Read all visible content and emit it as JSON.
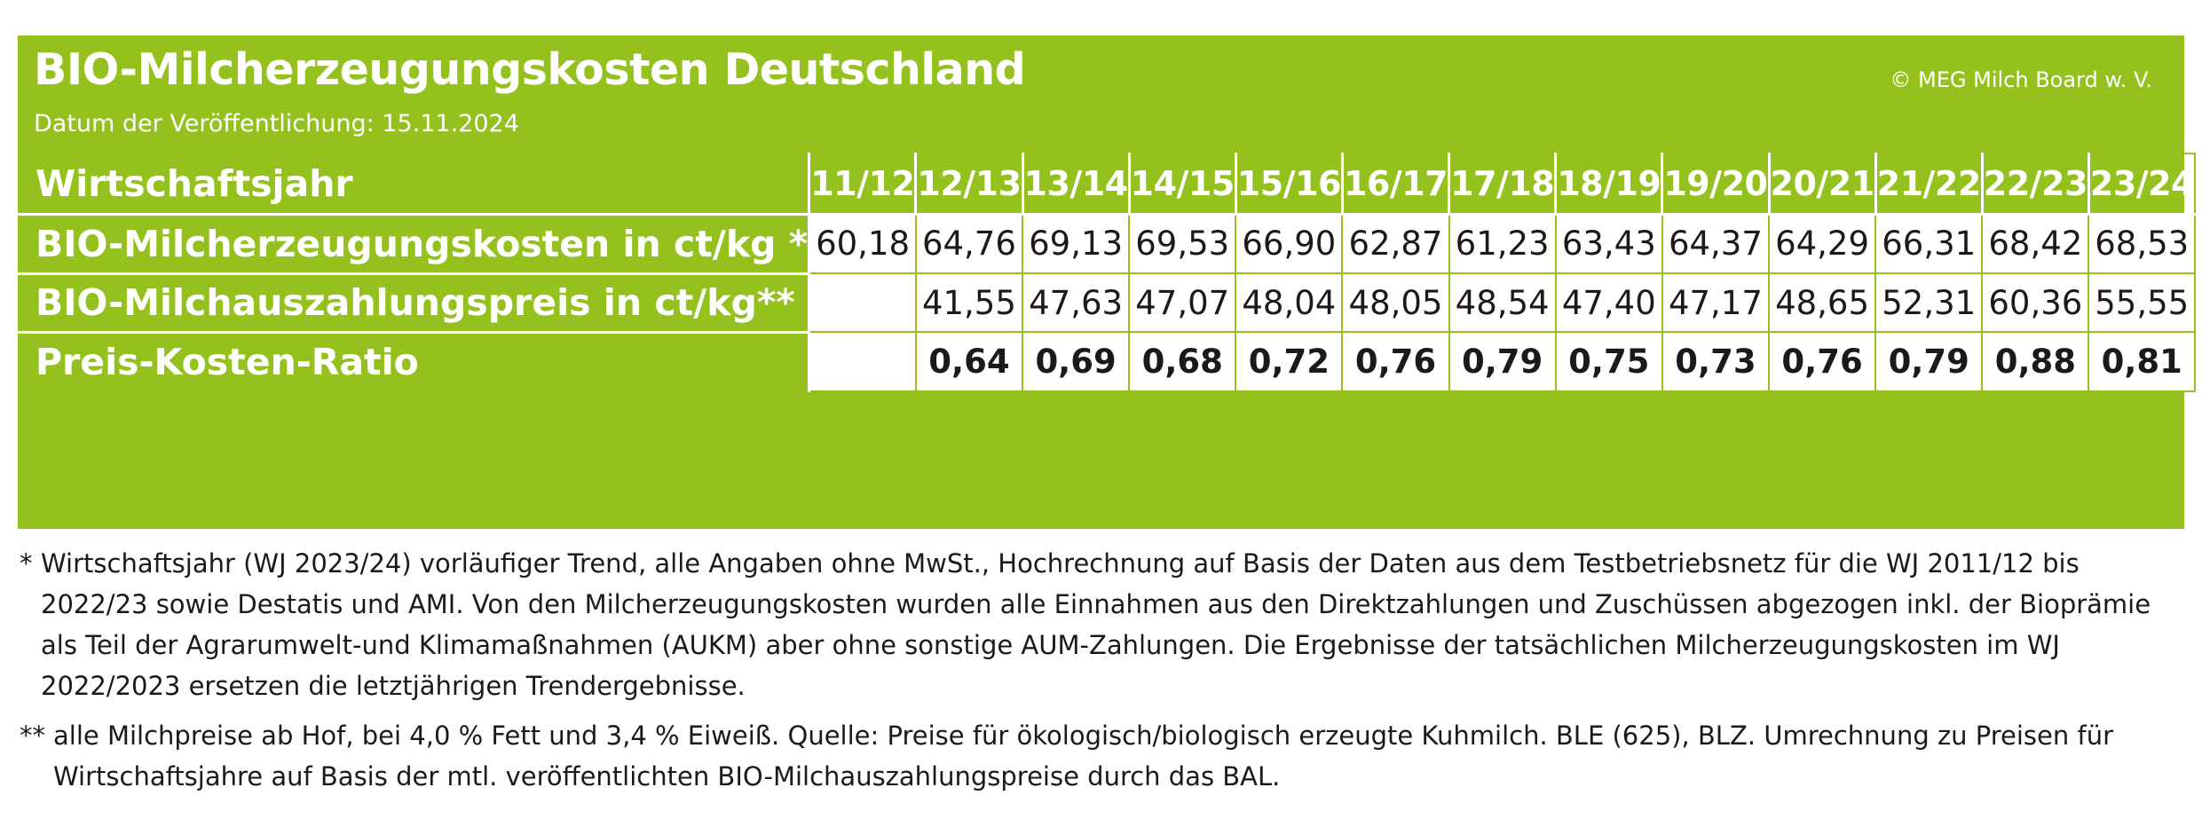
{
  "header": {
    "title": "BIO-Milcherzeugungskosten Deutschland",
    "date": "Datum der Veröffentlichung: 15.11.2024",
    "copyright": "© MEG Milch Board w. V."
  },
  "colors": {
    "brand_green": "#95c11f",
    "text_dark": "#1a1a1a",
    "white": "#ffffff"
  },
  "chart_data": {
    "type": "table",
    "title": "BIO-Milcherzeugungskosten Deutschland",
    "columns": [
      "11/12",
      "12/13",
      "13/14",
      "14/15",
      "15/16",
      "16/17",
      "17/18",
      "18/19",
      "19/20",
      "20/21",
      "21/22",
      "22/23",
      "23/24"
    ],
    "rows": [
      {
        "label": "Wirtschaftsjahr",
        "values": [
          "11/12",
          "12/13",
          "13/14",
          "14/15",
          "15/16",
          "16/17",
          "17/18",
          "18/19",
          "19/20",
          "20/21",
          "21/22",
          "22/23",
          "23/24"
        ]
      },
      {
        "label": "BIO-Milcherzeugungskosten in ct/kg *",
        "values": [
          "60,18",
          "64,76",
          "69,13",
          "69,53",
          "66,90",
          "62,87",
          "61,23",
          "63,43",
          "64,37",
          "64,29",
          "66,31",
          "68,42",
          "68,53"
        ]
      },
      {
        "label": "BIO-Milchauszahlungspreis in ct/kg**",
        "values": [
          "",
          "41,55",
          "47,63",
          "47,07",
          "48,04",
          "48,05",
          "48,54",
          "47,40",
          "47,17",
          "48,65",
          "52,31",
          "60,36",
          "55,55"
        ]
      },
      {
        "label": "Preis-Kosten-Ratio",
        "values": [
          "",
          "0,64",
          "0,69",
          "0,68",
          "0,72",
          "0,76",
          "0,79",
          "0,75",
          "0,73",
          "0,76",
          "0,79",
          "0,88",
          "0,81"
        ]
      }
    ]
  },
  "notes": {
    "note1_mark": "*",
    "note1_text": "Wirtschaftsjahr (WJ 2023/24) vorläufiger Trend, alle Angaben ohne MwSt., Hochrechnung auf Basis der Daten aus dem Testbetriebsnetz für die WJ 2011/12 bis 2022/23 sowie Destatis und AMI. Von den Milcherzeugungskosten wurden alle Einnahmen aus den Direktzahlungen und Zuschüssen abgezogen inkl. der Bioprämie als Teil der Agrarumwelt-und Klimamaßnahmen (AUKM) aber ohne sonstige AUM-Zahlungen. Die Ergebnisse der tatsächlichen Milcherzeugungskosten im WJ 2022/2023 ersetzen die letztjährigen Trendergebnisse.",
    "note2_mark": "**",
    "note2_text": "alle Milchpreise ab Hof, bei 4,0 % Fett und 3,4 % Eiweiß. Quelle: Preise für ökologisch/biologisch erzeugte Kuhmilch. BLE (625), BLZ. Umrechnung zu Preisen für Wirtschaftsjahre auf Basis der mtl. veröffentlichten BIO-Milchauszahlungspreise durch das BAL."
  }
}
